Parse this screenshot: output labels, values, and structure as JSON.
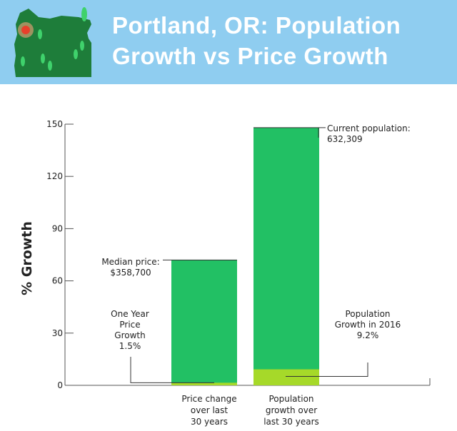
{
  "header": {
    "title_line1": "Portland, OR: Population",
    "title_line2": "Growth vs Price Growth",
    "background_color": "#8fcdf0",
    "map_icon": "oregon-map-icon"
  },
  "chart_data": {
    "type": "bar",
    "ylabel": "% Growth",
    "ylim": [
      0,
      150
    ],
    "yticks": [
      0,
      30,
      60,
      90,
      120,
      150
    ],
    "categories": [
      [
        "Price change",
        "over last",
        "30 years"
      ],
      [
        "Population",
        "growth over",
        "last 30 years"
      ]
    ],
    "series": [
      {
        "values": [
          72,
          148
        ],
        "color": "#22c064"
      },
      {
        "values": [
          1.5,
          9.2
        ],
        "color": "#a6d929"
      }
    ],
    "annotations": {
      "median_price": [
        "Median price:",
        "$358,700"
      ],
      "one_year_price": [
        "One Year",
        "Price",
        "Growth",
        "1.5%"
      ],
      "current_population": [
        "Current population:",
        "632,309"
      ],
      "population_2016": [
        "Population",
        "Growth in 2016",
        "9.2%"
      ]
    }
  }
}
